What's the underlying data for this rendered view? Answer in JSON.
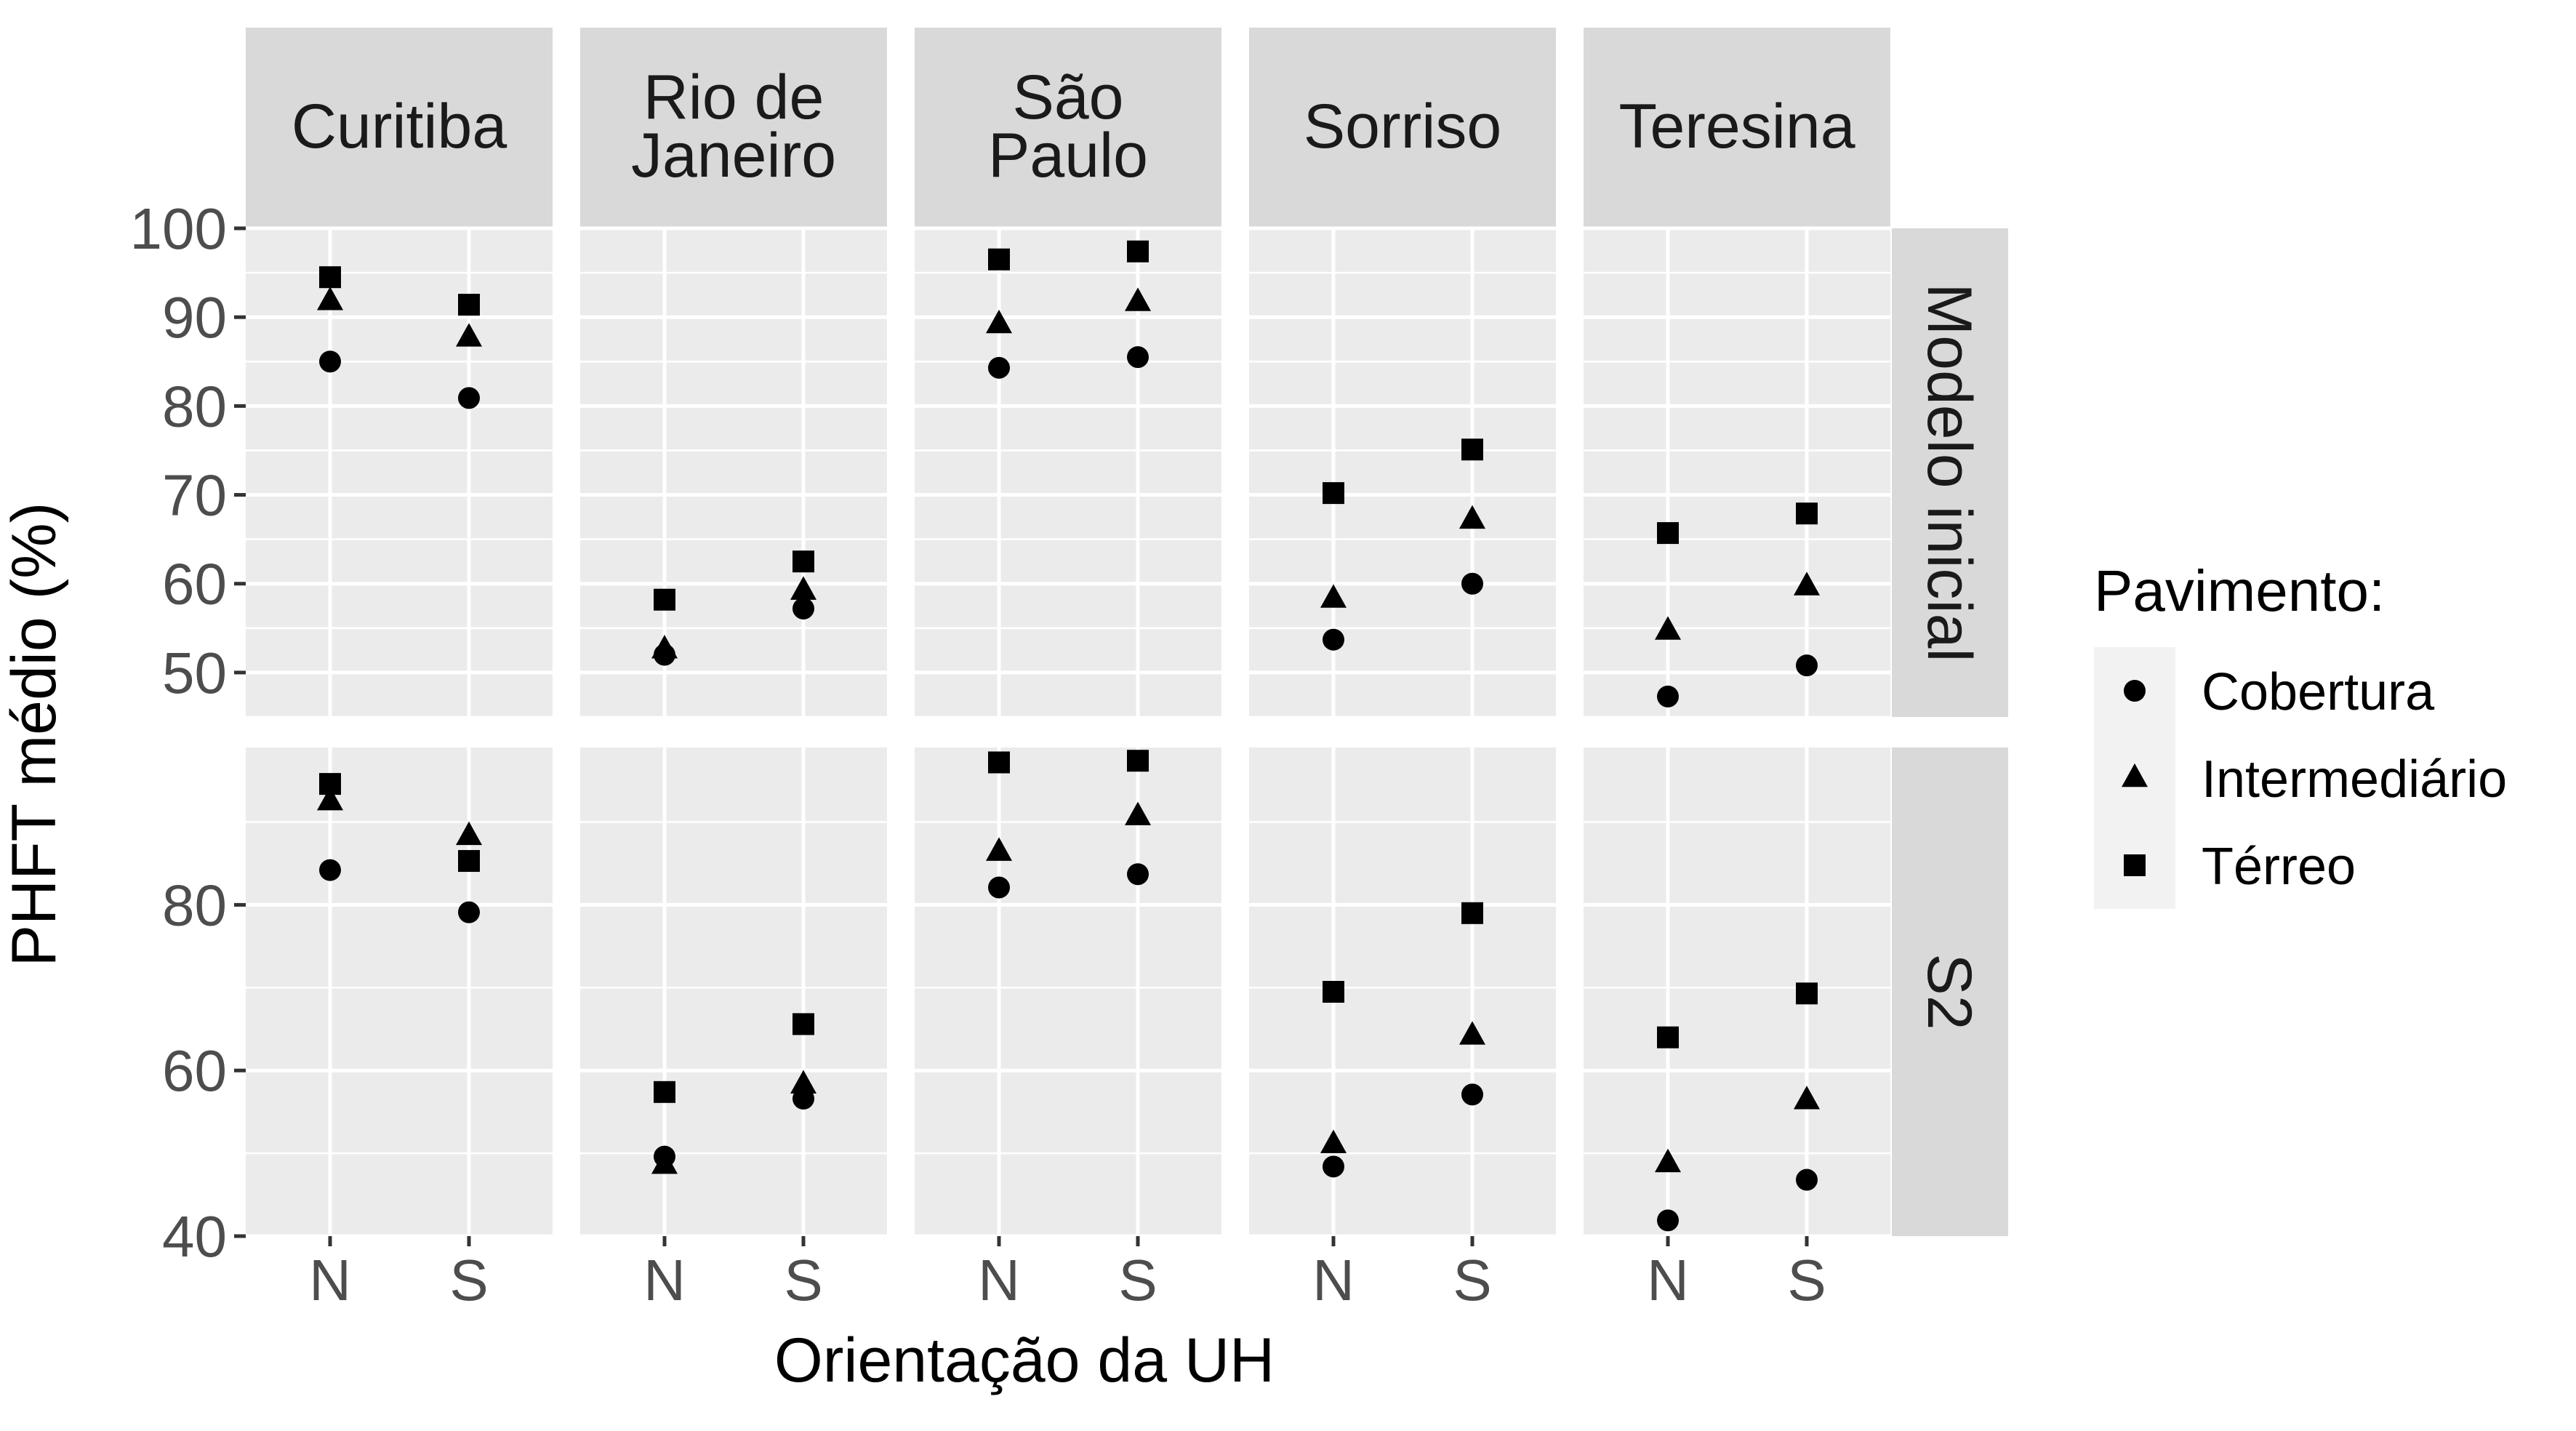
{
  "chart_data": {
    "type": "scatter",
    "title": "",
    "xlabel": "Orientação da UH",
    "ylabel": "PHFT médio (%)",
    "categories": [
      "N",
      "S"
    ],
    "columns": [
      "Curitiba",
      "Rio de\nJaneiro",
      "São\nPaulo",
      "Sorriso",
      "Teresina"
    ],
    "legend": {
      "title": "Pavimento:",
      "position": "right",
      "entries": [
        {
          "name": "Cobertura",
          "shape": "circle"
        },
        {
          "name": "Intermediário",
          "shape": "triangle"
        },
        {
          "name": "Térreo",
          "shape": "square"
        }
      ]
    },
    "grid": true,
    "rows": [
      {
        "name": "Modelo inicial",
        "ylim": [
          45,
          100
        ],
        "yticks": [
          50,
          60,
          70,
          80,
          90,
          100
        ],
        "panels": [
          {
            "column": "Curitiba",
            "Cobertura": [
              85.0,
              80.9
            ],
            "Intermediário": [
              91.8,
              87.7
            ],
            "Térreo": [
              94.5,
              91.4
            ]
          },
          {
            "column": "Rio de\nJaneiro",
            "Cobertura": [
              52.0,
              57.2
            ],
            "Intermediário": [
              52.6,
              59.2
            ],
            "Térreo": [
              58.2,
              62.5
            ]
          },
          {
            "column": "São\nPaulo",
            "Cobertura": [
              84.3,
              85.5
            ],
            "Intermediário": [
              89.2,
              91.7
            ],
            "Térreo": [
              96.5,
              97.4
            ]
          },
          {
            "column": "Sorriso",
            "Cobertura": [
              53.7,
              60.0
            ],
            "Intermediário": [
              58.3,
              67.2
            ],
            "Térreo": [
              70.2,
              75.1
            ]
          },
          {
            "column": "Teresina",
            "Cobertura": [
              47.3,
              50.8
            ],
            "Intermediário": [
              54.7,
              59.7
            ],
            "Térreo": [
              65.7,
              67.9
            ]
          }
        ]
      },
      {
        "name": "S2",
        "ylim": [
          40,
          99
        ],
        "yticks": [
          40,
          60,
          80
        ],
        "panels": [
          {
            "column": "Curitiba",
            "Cobertura": [
              84.2,
              79.1
            ],
            "Intermediário": [
              92.5,
              88.3
            ],
            "Térreo": [
              94.6,
              85.3
            ]
          },
          {
            "column": "Rio de\nJaneiro",
            "Cobertura": [
              49.6,
              56.6
            ],
            "Intermediário": [
              48.6,
              58.3
            ],
            "Térreo": [
              57.4,
              65.6
            ]
          },
          {
            "column": "São\nPaulo",
            "Cobertura": [
              82.1,
              83.7
            ],
            "Intermediário": [
              86.4,
              90.7
            ],
            "Térreo": [
              97.2,
              97.4
            ]
          },
          {
            "column": "Sorriso",
            "Cobertura": [
              48.4,
              57.1
            ],
            "Intermediário": [
              51.1,
              64.2
            ],
            "Térreo": [
              69.5,
              79.0
            ]
          },
          {
            "column": "Teresina",
            "Cobertura": [
              41.9,
              46.8
            ],
            "Intermediário": [
              48.8,
              56.4
            ],
            "Térreo": [
              64.0,
              69.3
            ]
          }
        ]
      }
    ]
  }
}
